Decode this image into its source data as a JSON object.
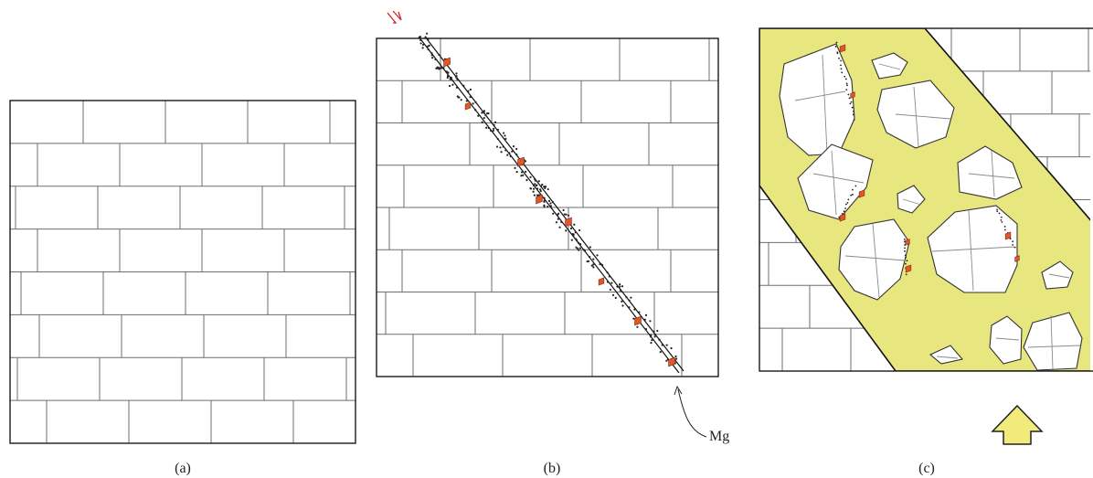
{
  "panels": [
    {
      "id": "a",
      "label": "(a)"
    },
    {
      "id": "b",
      "label": "(b)"
    },
    {
      "id": "c",
      "label": "(c)"
    }
  ],
  "annotations": {
    "mg_label": "Mg"
  },
  "colors": {
    "fill_matrix": "#e8e67f",
    "mineral": "#e2562a",
    "shear_arrow": "#d62020",
    "frame": "#1a1a1a",
    "brick_line": "#6e6e6e"
  }
}
